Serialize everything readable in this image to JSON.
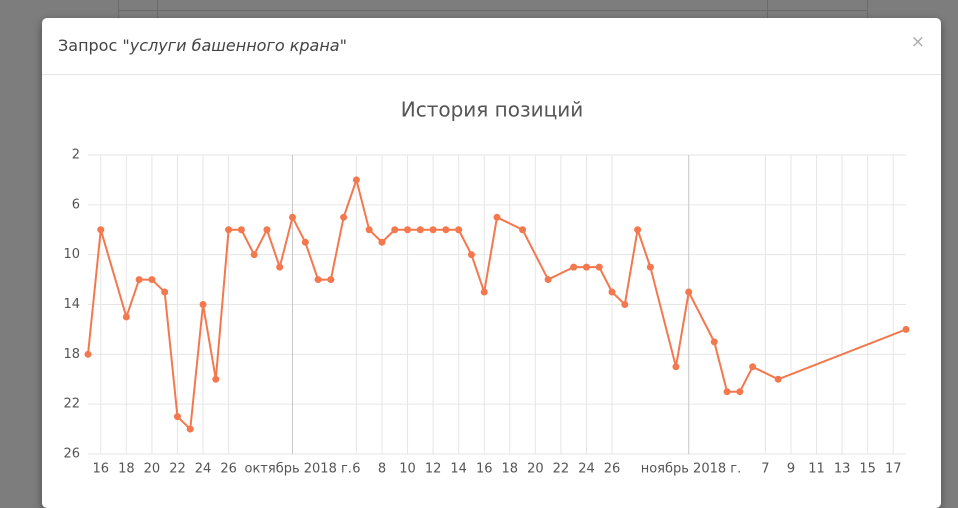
{
  "header": {
    "prefix": "Запрос \"",
    "query": "услуги башенного крана",
    "suffix": "\"",
    "close": "×"
  },
  "chart_data": {
    "type": "line",
    "title": "История позиций",
    "x": [
      "2018-09-15",
      "2018-09-16",
      "2018-09-18",
      "2018-09-19",
      "2018-09-20",
      "2018-09-21",
      "2018-09-22",
      "2018-09-23",
      "2018-09-24",
      "2018-09-25",
      "2018-09-26",
      "2018-09-27",
      "2018-09-28",
      "2018-09-29",
      "2018-09-30",
      "2018-10-01",
      "2018-10-02",
      "2018-10-03",
      "2018-10-04",
      "2018-10-05",
      "2018-10-06",
      "2018-10-07",
      "2018-10-08",
      "2018-10-09",
      "2018-10-10",
      "2018-10-11",
      "2018-10-12",
      "2018-10-13",
      "2018-10-14",
      "2018-10-15",
      "2018-10-16",
      "2018-10-17",
      "2018-10-19",
      "2018-10-21",
      "2018-10-23",
      "2018-10-24",
      "2018-10-25",
      "2018-10-26",
      "2018-10-27",
      "2018-10-28",
      "2018-10-29",
      "2018-10-31",
      "2018-11-01",
      "2018-11-03",
      "2018-11-04",
      "2018-11-05",
      "2018-11-06",
      "2018-11-08",
      "2018-11-18"
    ],
    "series": [
      {
        "color": "#f4784e",
        "values": [
          18,
          8,
          15,
          12,
          12,
          13,
          23,
          24,
          14,
          20,
          8,
          8,
          10,
          8,
          11,
          7,
          9,
          12,
          12,
          7,
          4,
          8,
          9,
          8,
          8,
          8,
          8,
          8,
          8,
          10,
          13,
          7,
          8,
          12,
          11,
          11,
          11,
          13,
          14,
          8,
          11,
          19,
          13,
          17,
          21,
          21,
          19,
          20,
          16
        ]
      }
    ],
    "xlim": [
      "2018-09-15",
      "2018-11-18"
    ],
    "xticks": [
      {
        "value": "2018-09-16",
        "label": "16"
      },
      {
        "value": "2018-09-18",
        "label": "18"
      },
      {
        "value": "2018-09-20",
        "label": "20"
      },
      {
        "value": "2018-09-22",
        "label": "22"
      },
      {
        "value": "2018-09-24",
        "label": "24"
      },
      {
        "value": "2018-09-26",
        "label": "26"
      },
      {
        "value": "2018-10-01",
        "label": "октябрь 2018 г."
      },
      {
        "value": "2018-10-06",
        "label": "6"
      },
      {
        "value": "2018-10-08",
        "label": "8"
      },
      {
        "value": "2018-10-10",
        "label": "10"
      },
      {
        "value": "2018-10-12",
        "label": "12"
      },
      {
        "value": "2018-10-14",
        "label": "14"
      },
      {
        "value": "2018-10-16",
        "label": "16"
      },
      {
        "value": "2018-10-18",
        "label": "18"
      },
      {
        "value": "2018-10-20",
        "label": "20"
      },
      {
        "value": "2018-10-22",
        "label": "22"
      },
      {
        "value": "2018-10-24",
        "label": "24"
      },
      {
        "value": "2018-10-26",
        "label": "26"
      },
      {
        "value": "2018-11-01",
        "label": "ноябрь 2018 г."
      },
      {
        "value": "2018-11-07",
        "label": "7"
      },
      {
        "value": "2018-11-09",
        "label": "9"
      },
      {
        "value": "2018-11-11",
        "label": "11"
      },
      {
        "value": "2018-11-13",
        "label": "13"
      },
      {
        "value": "2018-11-15",
        "label": "15"
      },
      {
        "value": "2018-11-17",
        "label": "17"
      }
    ],
    "ylim": [
      26,
      2
    ],
    "yticks": [
      2,
      6,
      10,
      14,
      18,
      22,
      26
    ],
    "grid": true
  }
}
